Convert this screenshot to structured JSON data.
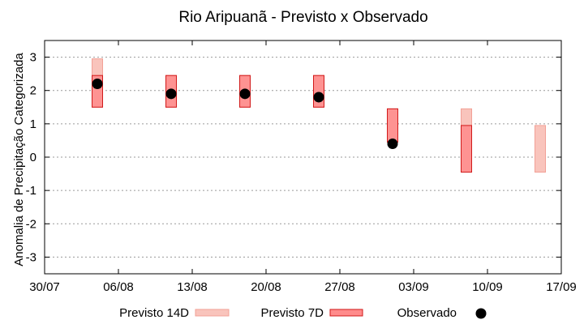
{
  "chart_data": {
    "type": "range-and-point",
    "title": "Rio Aripuanã - Previsto x Observado",
    "xlabel": "",
    "ylabel": "Anomalia de Precipitação Categorizada",
    "x_tick_labels": [
      "30/07",
      "06/08",
      "13/08",
      "20/08",
      "27/08",
      "03/09",
      "10/09",
      "17/09"
    ],
    "x_ticks": [
      "2023-07-30",
      "2023-08-06",
      "2023-08-13",
      "2023-08-20",
      "2023-08-27",
      "2023-09-03",
      "2023-09-10",
      "2023-09-17"
    ],
    "xlim": [
      "2023-07-30",
      "2023-09-17"
    ],
    "ylim": [
      -3.5,
      3.5
    ],
    "y_ticks": [
      -3,
      -2,
      -1,
      0,
      1,
      2,
      3
    ],
    "grid": true,
    "legend_position": "bottom",
    "legend": [
      {
        "name": "Previsto 14D",
        "fill": "#f9c4bc",
        "stroke": "#f2a096"
      },
      {
        "name": "Previsto 7D",
        "fill": "#ff8b8b",
        "stroke": "#d11a1a"
      },
      {
        "name": "Observado",
        "color": "#000000"
      }
    ],
    "series": [
      {
        "name": "Previsto 14D",
        "points": [
          {
            "x": "2023-08-04",
            "low": 1.5,
            "high": 2.95
          },
          {
            "x": "2023-08-11",
            "low": 1.5,
            "high": 2.45
          },
          {
            "x": "2023-08-18",
            "low": 1.5,
            "high": 2.45
          },
          {
            "x": "2023-08-25",
            "low": 1.5,
            "high": 2.45
          },
          {
            "x": "2023-09-01",
            "low": 0.45,
            "high": 1.45
          },
          {
            "x": "2023-09-08",
            "low": -0.45,
            "high": 1.45
          },
          {
            "x": "2023-09-15",
            "low": -0.45,
            "high": 0.95
          }
        ]
      },
      {
        "name": "Previsto 7D",
        "points": [
          {
            "x": "2023-08-04",
            "low": 1.5,
            "high": 2.45
          },
          {
            "x": "2023-08-11",
            "low": 1.5,
            "high": 2.45
          },
          {
            "x": "2023-08-18",
            "low": 1.5,
            "high": 2.45
          },
          {
            "x": "2023-08-25",
            "low": 1.5,
            "high": 2.45
          },
          {
            "x": "2023-09-01",
            "low": 0.45,
            "high": 1.45
          },
          {
            "x": "2023-09-08",
            "low": -0.45,
            "high": 0.95
          }
        ]
      },
      {
        "name": "Observado",
        "points": [
          {
            "x": "2023-08-04",
            "y": 2.2
          },
          {
            "x": "2023-08-11",
            "y": 1.9
          },
          {
            "x": "2023-08-18",
            "y": 1.9
          },
          {
            "x": "2023-08-25",
            "y": 1.8
          },
          {
            "x": "2023-09-01",
            "y": 0.4
          }
        ]
      }
    ]
  }
}
